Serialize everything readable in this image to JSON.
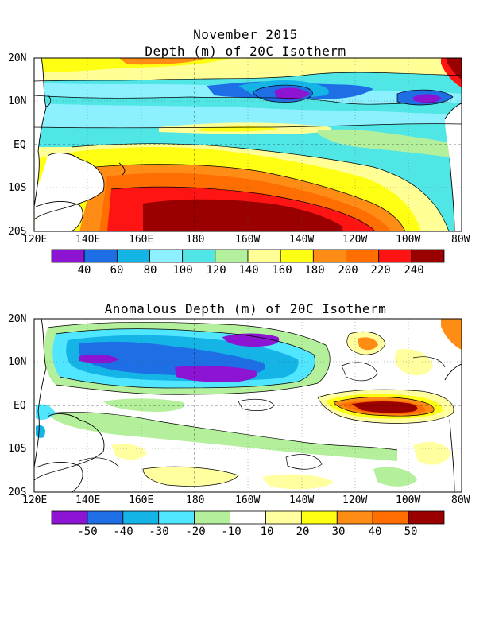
{
  "page_title": "November 2015",
  "panel1": {
    "title": "Depth (m) of 20C Isotherm",
    "colorbar_labels": [
      "40",
      "60",
      "80",
      "100",
      "120",
      "140",
      "160",
      "180",
      "200",
      "220",
      "240"
    ],
    "colorbar_colors": [
      "#8c14d2",
      "#1e6ee6",
      "#14b4e6",
      "#8cf0ff",
      "#50e6e6",
      "#b4f09c",
      "#ffff96",
      "#ffff14",
      "#ff8c14",
      "#ff6e00",
      "#ff1414",
      "#9a0000"
    ]
  },
  "panel2": {
    "title": "Anomalous Depth (m) of 20C Isotherm",
    "colorbar_labels": [
      "-50",
      "-40",
      "-30",
      "-20",
      "-10",
      "10",
      "20",
      "30",
      "40",
      "50"
    ],
    "colorbar_colors": [
      "#8c14d2",
      "#1e6ee6",
      "#14b4e6",
      "#50e6ff",
      "#b4f09c",
      "#ffffff",
      "#ffffa0",
      "#ffff14",
      "#ff8c14",
      "#ff6e00",
      "#9a0000"
    ]
  },
  "x_ticks": [
    "120E",
    "140E",
    "160E",
    "180",
    "160W",
    "140W",
    "120W",
    "100W",
    "80W"
  ],
  "y_ticks": [
    "20N",
    "10N",
    "EQ",
    "10S",
    "20S"
  ]
}
